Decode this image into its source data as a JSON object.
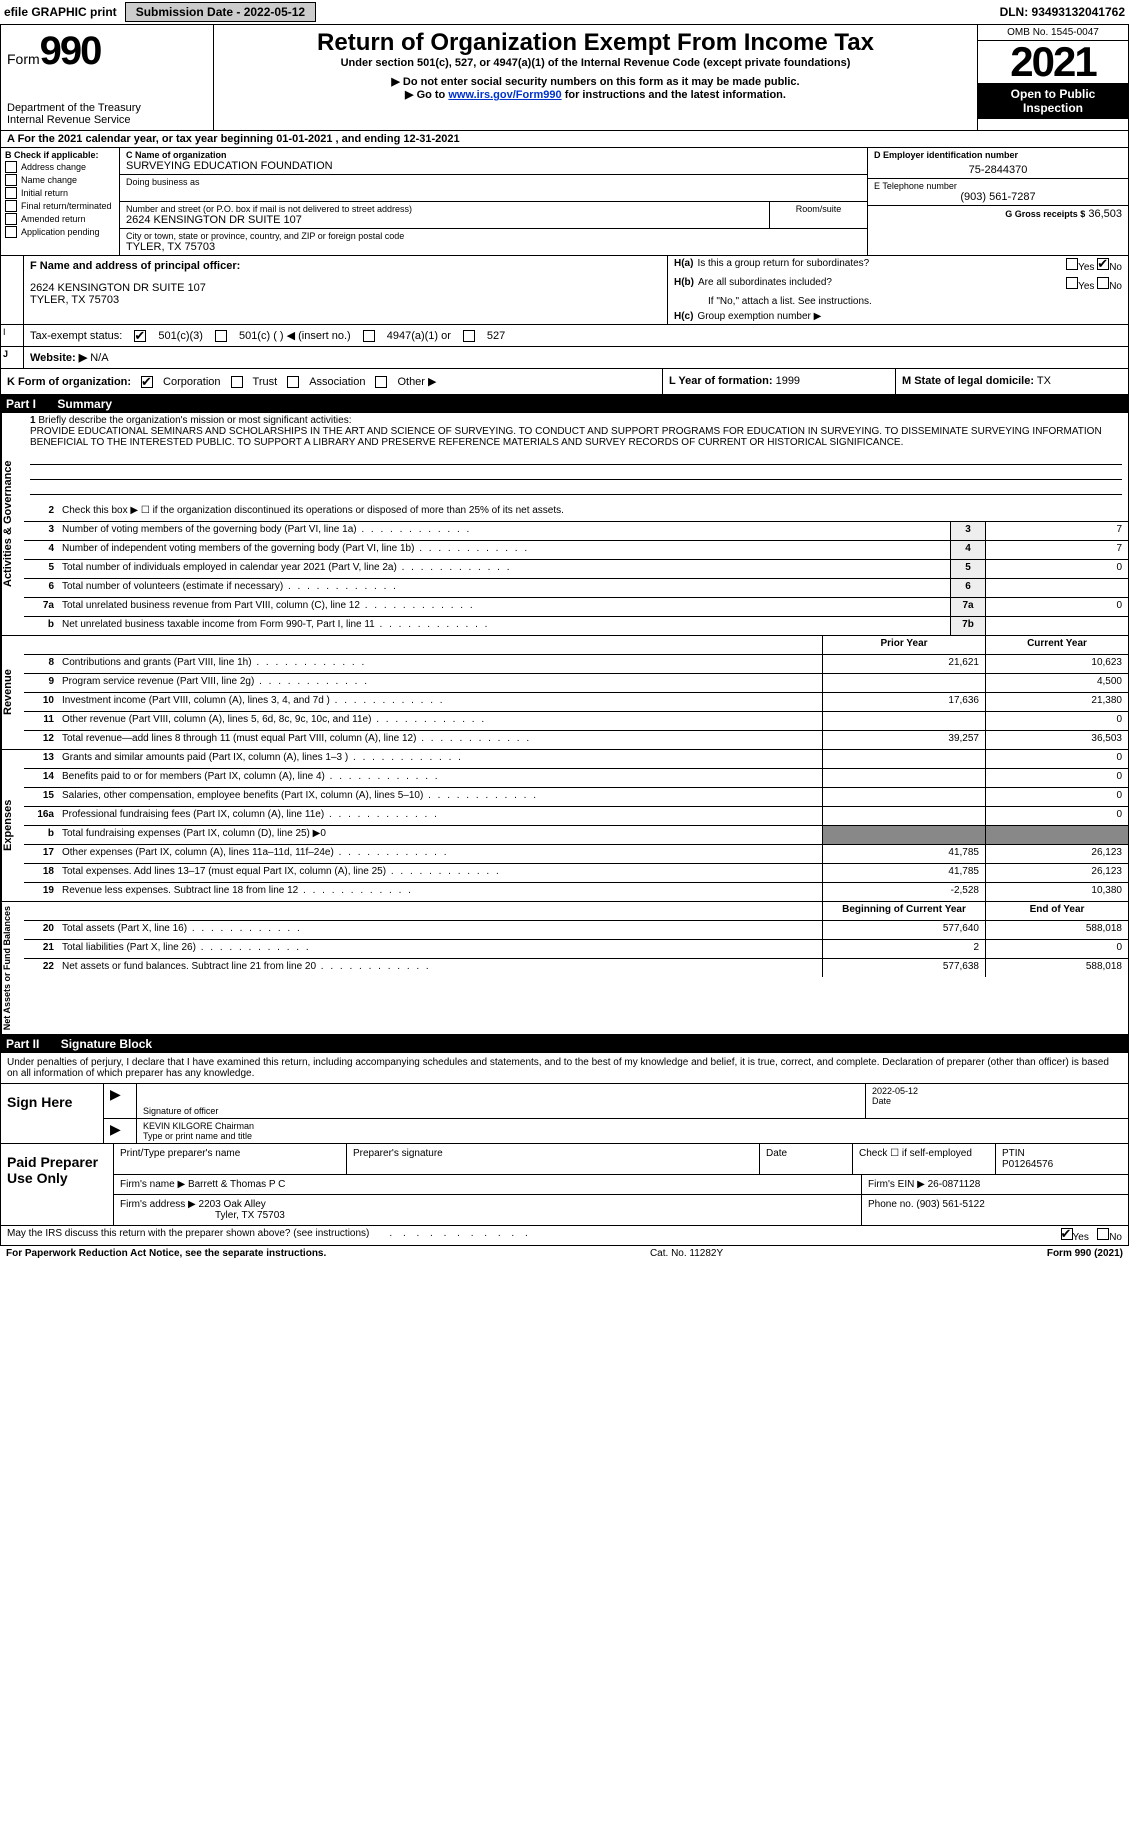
{
  "topbar": {
    "efile_label": "efile GRAPHIC print",
    "submission_label": "Submission Date - 2022-05-12",
    "dln_label": "DLN: 93493132041762"
  },
  "header": {
    "form_label": "Form",
    "form_number": "990",
    "dept1": "Department of the Treasury",
    "dept2": "Internal Revenue Service",
    "title": "Return of Organization Exempt From Income Tax",
    "sub1": "Under section 501(c), 527, or 4947(a)(1) of the Internal Revenue Code (except private foundations)",
    "sub2": "▶ Do not enter social security numbers on this form as it may be made public.",
    "sub3_pre": "▶ Go to ",
    "sub3_link": "www.irs.gov/Form990",
    "sub3_post": " for instructions and the latest information.",
    "omb": "OMB No. 1545-0047",
    "year": "2021",
    "public": "Open to Public Inspection"
  },
  "row_a": "A For the 2021 calendar year, or tax year beginning 01-01-2021    , and ending 12-31-2021",
  "col_b": {
    "heading": "B Check if applicable:",
    "items": [
      "Address change",
      "Name change",
      "Initial return",
      "Final return/terminated",
      "Amended return",
      "Application pending"
    ]
  },
  "col_c": {
    "name_label": "C Name of organization",
    "name": "SURVEYING EDUCATION FOUNDATION",
    "dba_label": "Doing business as",
    "street_label": "Number and street (or P.O. box if mail is not delivered to street address)",
    "room_label": "Room/suite",
    "street": "2624 KENSINGTON DR SUITE 107",
    "city_label": "City or town, state or province, country, and ZIP or foreign postal code",
    "city": "TYLER, TX  75703"
  },
  "col_deg": {
    "d_label": "D Employer identification number",
    "d_value": "75-2844370",
    "e_label": "E Telephone number",
    "e_value": "(903) 561-7287",
    "g_label": "G Gross receipts $",
    "g_value": "36,503"
  },
  "col_f": {
    "label": "F Name and address of principal officer:",
    "line1": "2624 KENSINGTON DR SUITE 107",
    "line2": "TYLER, TX  75703"
  },
  "col_i": {
    "label": "I",
    "text": "Tax-exempt status:",
    "opt1": "501(c)(3)",
    "opt2": "501(c) (   ) ◀ (insert no.)",
    "opt3": "4947(a)(1) or",
    "opt4": "527"
  },
  "col_j": {
    "label": "J",
    "text": "Website: ▶",
    "value": "N/A"
  },
  "col_h": {
    "ha_label": "H(a)",
    "ha_text": "Is this a group return for subordinates?",
    "hb_label": "H(b)",
    "hb_text": "Are all subordinates included?",
    "hb_note": "If \"No,\" attach a list. See instructions.",
    "hc_label": "H(c)",
    "hc_text": "Group exemption number ▶",
    "yes": "Yes",
    "no": "No"
  },
  "row_k": {
    "label": "K Form of organization:",
    "opts": [
      "Corporation",
      "Trust",
      "Association",
      "Other ▶"
    ]
  },
  "row_lm": {
    "l_label": "L Year of formation:",
    "l_value": "1999",
    "m_label": "M State of legal domicile:",
    "m_value": "TX"
  },
  "part1": {
    "label": "Part I",
    "title": "Summary"
  },
  "mission": {
    "line1_label": "1",
    "line1_text": "Briefly describe the organization's mission or most significant activities:",
    "body": "PROVIDE EDUCATIONAL SEMINARS AND SCHOLARSHIPS IN THE ART AND SCIENCE OF SURVEYING. TO CONDUCT AND SUPPORT PROGRAMS FOR EDUCATION IN SURVEYING. TO DISSEMINATE SURVEYING INFORMATION BENEFICIAL TO THE INTERESTED PUBLIC. TO SUPPORT A LIBRARY AND PRESERVE REFERENCE MATERIALS AND SURVEY RECORDS OF CURRENT OR HISTORICAL SIGNIFICANCE."
  },
  "gov_section": {
    "label": "Activities & Governance",
    "rows": [
      {
        "n": "2",
        "desc": "Check this box ▶ ☐ if the organization discontinued its operations or disposed of more than 25% of its net assets."
      },
      {
        "n": "3",
        "desc": "Number of voting members of the governing body (Part VI, line 1a)",
        "nc": "3",
        "val": "7"
      },
      {
        "n": "4",
        "desc": "Number of independent voting members of the governing body (Part VI, line 1b)",
        "nc": "4",
        "val": "7"
      },
      {
        "n": "5",
        "desc": "Total number of individuals employed in calendar year 2021 (Part V, line 2a)",
        "nc": "5",
        "val": "0"
      },
      {
        "n": "6",
        "desc": "Total number of volunteers (estimate if necessary)",
        "nc": "6",
        "val": ""
      },
      {
        "n": "7a",
        "desc": "Total unrelated business revenue from Part VIII, column (C), line 12",
        "nc": "7a",
        "val": "0"
      },
      {
        "n": "b",
        "desc": "Net unrelated business taxable income from Form 990-T, Part I, line 11",
        "nc": "7b",
        "val": ""
      }
    ]
  },
  "rev_section": {
    "label": "Revenue",
    "header_prior": "Prior Year",
    "header_current": "Current Year",
    "rows": [
      {
        "n": "8",
        "desc": "Contributions and grants (Part VIII, line 1h)",
        "prior": "21,621",
        "curr": "10,623"
      },
      {
        "n": "9",
        "desc": "Program service revenue (Part VIII, line 2g)",
        "prior": "",
        "curr": "4,500"
      },
      {
        "n": "10",
        "desc": "Investment income (Part VIII, column (A), lines 3, 4, and 7d )",
        "prior": "17,636",
        "curr": "21,380"
      },
      {
        "n": "11",
        "desc": "Other revenue (Part VIII, column (A), lines 5, 6d, 8c, 9c, 10c, and 11e)",
        "prior": "",
        "curr": "0"
      },
      {
        "n": "12",
        "desc": "Total revenue—add lines 8 through 11 (must equal Part VIII, column (A), line 12)",
        "prior": "39,257",
        "curr": "36,503"
      }
    ]
  },
  "exp_section": {
    "label": "Expenses",
    "rows": [
      {
        "n": "13",
        "desc": "Grants and similar amounts paid (Part IX, column (A), lines 1–3 )",
        "prior": "",
        "curr": "0"
      },
      {
        "n": "14",
        "desc": "Benefits paid to or for members (Part IX, column (A), line 4)",
        "prior": "",
        "curr": "0"
      },
      {
        "n": "15",
        "desc": "Salaries, other compensation, employee benefits (Part IX, column (A), lines 5–10)",
        "prior": "",
        "curr": "0"
      },
      {
        "n": "16a",
        "desc": "Professional fundraising fees (Part IX, column (A), line 11e)",
        "prior": "",
        "curr": "0"
      },
      {
        "n": "b",
        "desc": "Total fundraising expenses (Part IX, column (D), line 25) ▶0",
        "grayed": true
      },
      {
        "n": "17",
        "desc": "Other expenses (Part IX, column (A), lines 11a–11d, 11f–24e)",
        "prior": "41,785",
        "curr": "26,123"
      },
      {
        "n": "18",
        "desc": "Total expenses. Add lines 13–17 (must equal Part IX, column (A), line 25)",
        "prior": "41,785",
        "curr": "26,123"
      },
      {
        "n": "19",
        "desc": "Revenue less expenses. Subtract line 18 from line 12",
        "prior": "-2,528",
        "curr": "10,380"
      }
    ]
  },
  "net_section": {
    "label": "Net Assets or Fund Balances",
    "header_begin": "Beginning of Current Year",
    "header_end": "End of Year",
    "rows": [
      {
        "n": "20",
        "desc": "Total assets (Part X, line 16)",
        "begin": "577,640",
        "end": "588,018"
      },
      {
        "n": "21",
        "desc": "Total liabilities (Part X, line 26)",
        "begin": "2",
        "end": "0"
      },
      {
        "n": "22",
        "desc": "Net assets or fund balances. Subtract line 21 from line 20",
        "begin": "577,638",
        "end": "588,018"
      }
    ]
  },
  "part2": {
    "label": "Part II",
    "title": "Signature Block"
  },
  "sig": {
    "declaration": "Under penalties of perjury, I declare that I have examined this return, including accompanying schedules and statements, and to the best of my knowledge and belief, it is true, correct, and complete. Declaration of preparer (other than officer) is based on all information of which preparer has any knowledge.",
    "sign_here": "Sign Here",
    "sig_label": "Signature of officer",
    "date_label": "Date",
    "date_value": "2022-05-12",
    "name_value": "KEVIN KILGORE Chairman",
    "name_label": "Type or print name and title"
  },
  "prep": {
    "label": "Paid Preparer Use Only",
    "print_name_label": "Print/Type preparer's name",
    "sig_label": "Preparer's signature",
    "date_label": "Date",
    "check_label": "Check ☐ if self-employed",
    "ptin_label": "PTIN",
    "ptin_value": "P01264576",
    "firm_name_label": "Firm's name    ▶",
    "firm_name": "Barrett & Thomas P C",
    "firm_ein_label": "Firm's EIN ▶",
    "firm_ein": "26-0871128",
    "firm_addr_label": "Firm's address ▶",
    "firm_addr1": "2203 Oak Alley",
    "firm_addr2": "Tyler, TX  75703",
    "phone_label": "Phone no.",
    "phone_value": "(903) 561-5122"
  },
  "footer": {
    "discuss": "May the IRS discuss this return with the preparer shown above? (see instructions)",
    "yes": "Yes",
    "no": "No"
  },
  "bottom": {
    "left": "For Paperwork Reduction Act Notice, see the separate instructions.",
    "mid": "Cat. No. 11282Y",
    "right": "Form 990 (2021)"
  },
  "colors": {
    "link": "#0033cc",
    "gray_bg": "#eeeeee",
    "dark_gray": "#888888",
    "black": "#000000"
  }
}
